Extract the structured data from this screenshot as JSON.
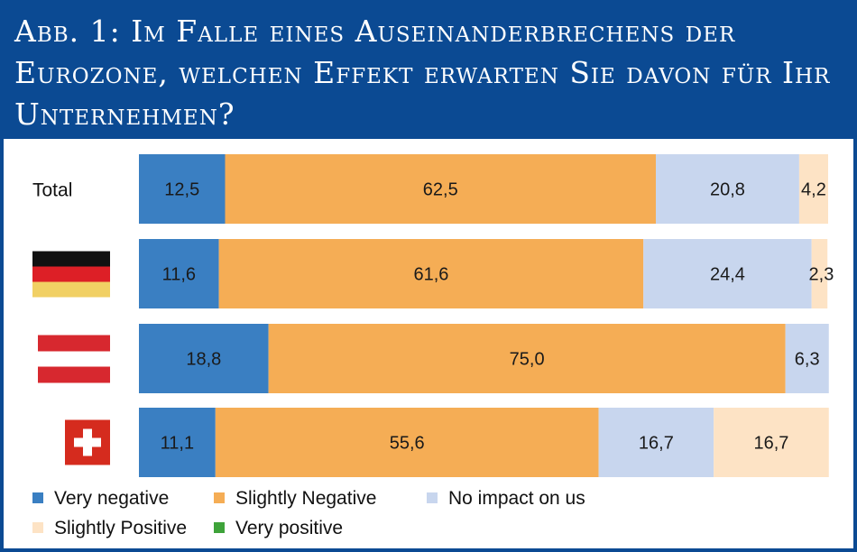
{
  "title": "Abb. 1: Im Falle eines Auseinanderbrechens der Eurozone, welchen Effekt erwarten Sie davon für Ihr Unternehmen?",
  "chart_data": {
    "type": "bar",
    "orientation": "horizontal",
    "stacked": true,
    "percent": true,
    "categories": [
      "Total",
      "Germany",
      "Austria",
      "Switzerland"
    ],
    "category_display": [
      "Total",
      "flag-germany",
      "flag-austria",
      "flag-switzerland"
    ],
    "series": [
      {
        "name": "Very negative",
        "color": "#3a7fc2",
        "values": [
          12.5,
          11.6,
          18.8,
          11.1
        ]
      },
      {
        "name": "Slightly Negative",
        "color": "#f5ad55",
        "values": [
          62.5,
          61.6,
          75.0,
          55.6
        ]
      },
      {
        "name": "No impact on us",
        "color": "#c8d6ee",
        "values": [
          20.8,
          24.4,
          6.3,
          16.7
        ]
      },
      {
        "name": "Slightly Positive",
        "color": "#fde3c5",
        "values": [
          4.2,
          2.3,
          0,
          16.7
        ]
      },
      {
        "name": "Very positive",
        "color": "#3ea33a",
        "values": [
          0,
          0,
          0,
          0
        ]
      }
    ],
    "data_labels": [
      [
        "12,5",
        "62,5",
        "20,8",
        "4,2",
        ""
      ],
      [
        "11,6",
        "61,6",
        "24,4",
        "2,3",
        ""
      ],
      [
        "18,8",
        "75,0",
        "6,3",
        "",
        ""
      ],
      [
        "11,1",
        "55,6",
        "16,7",
        "16,7",
        ""
      ]
    ],
    "label_colors": [
      "#ffffff",
      "#1a1a1a",
      "#1a1a1a",
      "#1a1a1a",
      "#1a1a1a"
    ],
    "xlim": [
      0,
      100
    ],
    "legend": "bottom-left"
  }
}
